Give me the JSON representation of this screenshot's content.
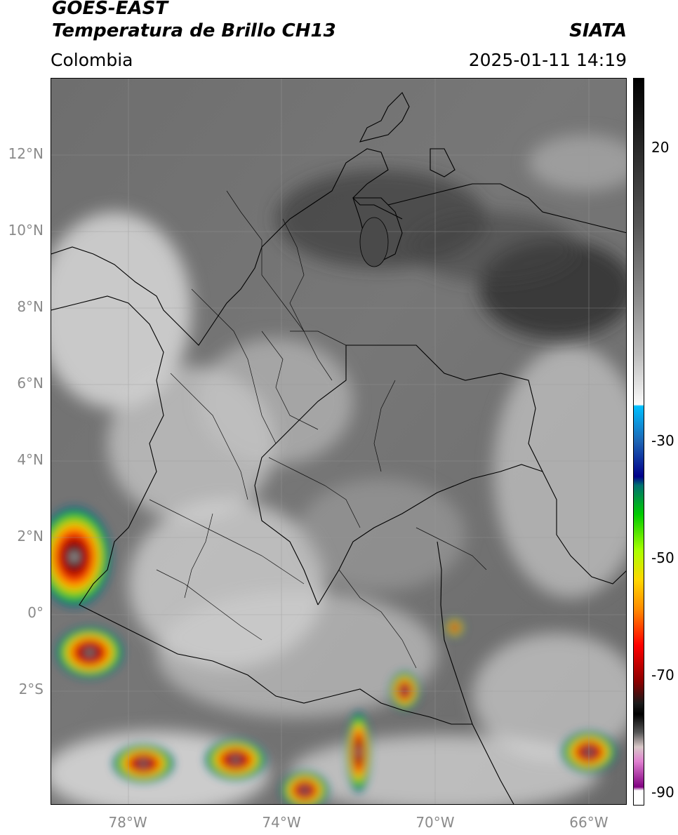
{
  "header": {
    "satellite": "GOES-EAST",
    "product": "Temperatura de Brillo CH13",
    "region": "Colombia",
    "source": "SIATA",
    "datetime": "2025-01-11 14:19"
  },
  "map": {
    "extent": {
      "lon": [
        -80,
        -65
      ],
      "lat": [
        -5,
        14
      ]
    },
    "latitude_labels": [
      {
        "lat": 12,
        "label": "12°N"
      },
      {
        "lat": 10,
        "label": "10°N"
      },
      {
        "lat": 8,
        "label": "8°N"
      },
      {
        "lat": 6,
        "label": "6°N"
      },
      {
        "lat": 4,
        "label": "4°N"
      },
      {
        "lat": 2,
        "label": "2°N"
      },
      {
        "lat": 0,
        "label": "0°"
      },
      {
        "lat": -2,
        "label": "2°S"
      }
    ],
    "longitude_labels": [
      {
        "lon": -78,
        "label": "78°W"
      },
      {
        "lon": -74,
        "label": "74°W"
      },
      {
        "lon": -70,
        "label": "70°W"
      },
      {
        "lon": -66,
        "label": "66°W"
      }
    ],
    "storm_clusters": [
      {
        "lon": -79.4,
        "lat": 1.5
      },
      {
        "lon": -79.0,
        "lat": -1.0
      },
      {
        "lon": -77.6,
        "lat": -3.9
      },
      {
        "lon": -75.2,
        "lat": -3.8
      },
      {
        "lon": -73.4,
        "lat": -4.6
      },
      {
        "lon": -72.0,
        "lat": -3.6
      },
      {
        "lon": -70.8,
        "lat": -2.0
      },
      {
        "lon": -69.5,
        "lat": -0.35
      },
      {
        "lon": -66.0,
        "lat": -3.6
      }
    ]
  },
  "colorbar": {
    "range": [
      -92,
      32
    ],
    "labels": [
      {
        "value": 20,
        "label": "20"
      },
      {
        "value": -30,
        "label": "-30"
      },
      {
        "value": -50,
        "label": "-50"
      },
      {
        "value": -70,
        "label": "-70"
      },
      {
        "value": -90,
        "label": "-90"
      }
    ]
  }
}
